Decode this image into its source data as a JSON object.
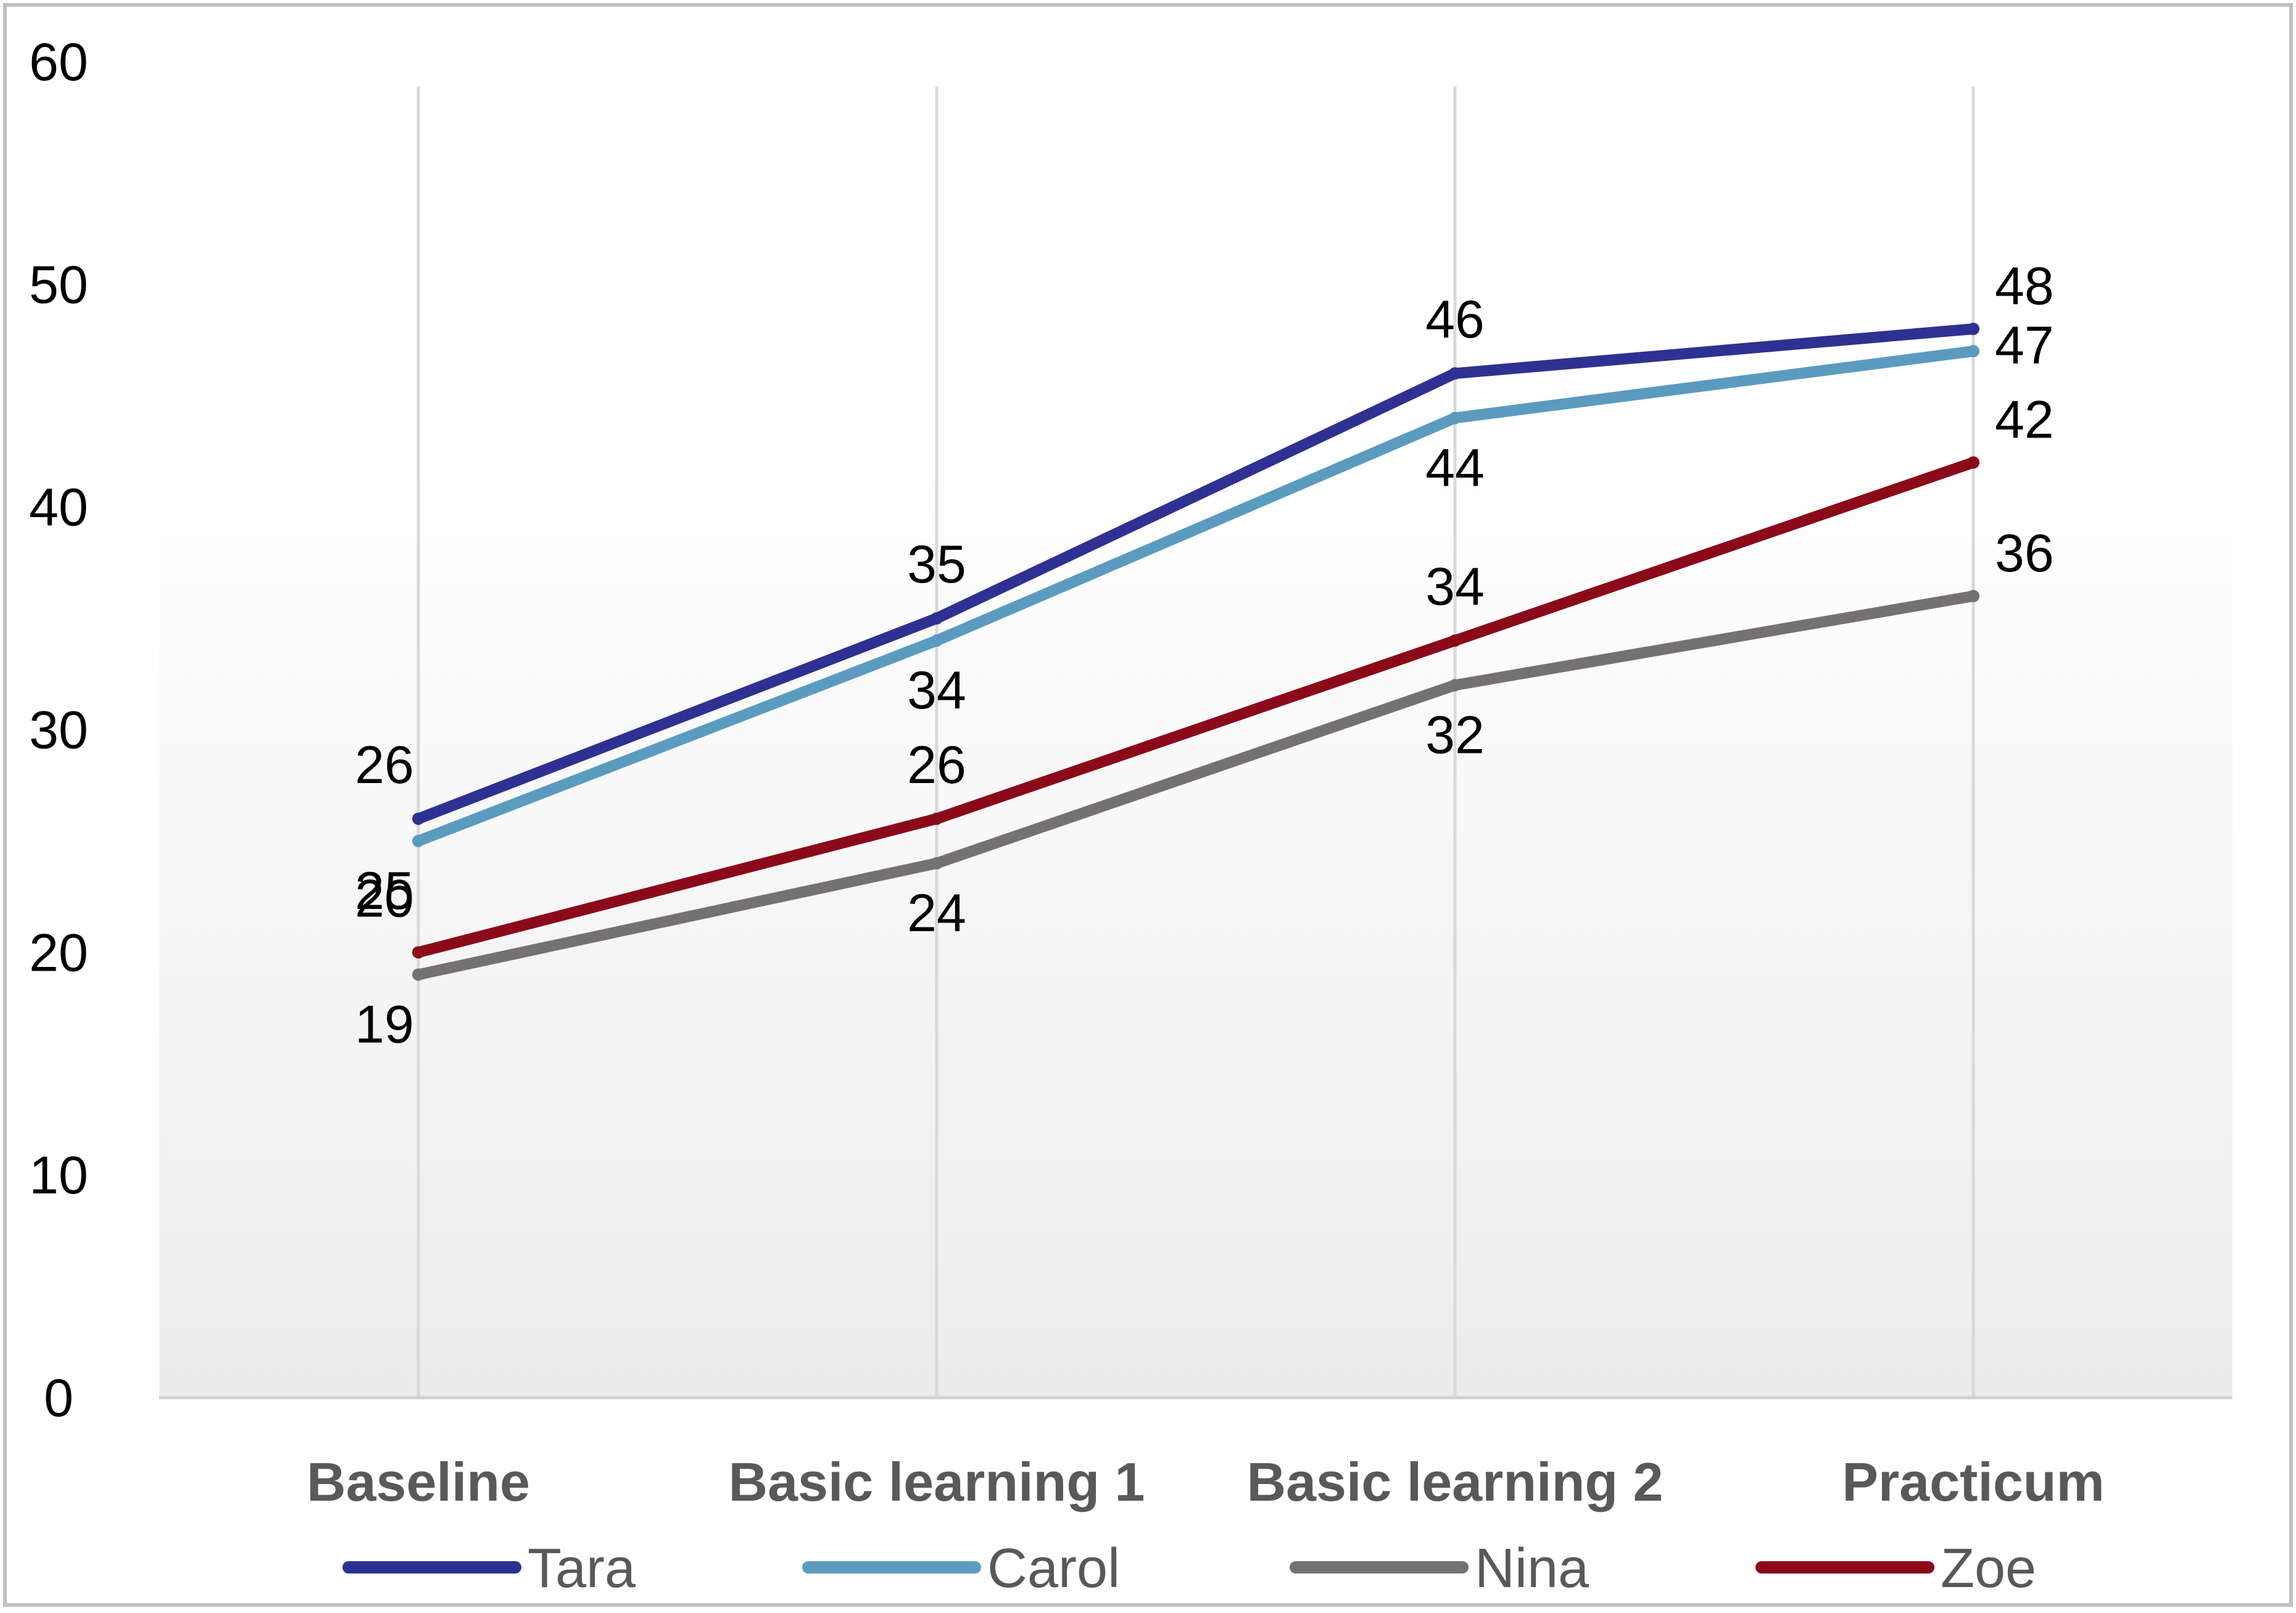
{
  "chart_data": {
    "type": "line",
    "title": "",
    "xlabel": "",
    "ylabel": "",
    "categories": [
      "Baseline",
      "Basic learning 1",
      "Basic learning 2",
      "Practicum"
    ],
    "ylim": [
      0,
      60
    ],
    "yticks": [
      "0",
      "10",
      "20",
      "30",
      "40",
      "50",
      "60"
    ],
    "grid": "vertical",
    "legend_position": "bottom",
    "series": [
      {
        "name": "Tara",
        "color": "#2E3192",
        "values": [
          26,
          35,
          46,
          48
        ]
      },
      {
        "name": "Carol",
        "color": "#5B9BBF",
        "values": [
          25,
          34,
          44,
          47
        ]
      },
      {
        "name": "Nina",
        "color": "#767171",
        "values": [
          19,
          24,
          32,
          36
        ]
      },
      {
        "name": "Zoe",
        "color": "#8B0A1A",
        "values": [
          20,
          26,
          34,
          42
        ]
      }
    ]
  }
}
